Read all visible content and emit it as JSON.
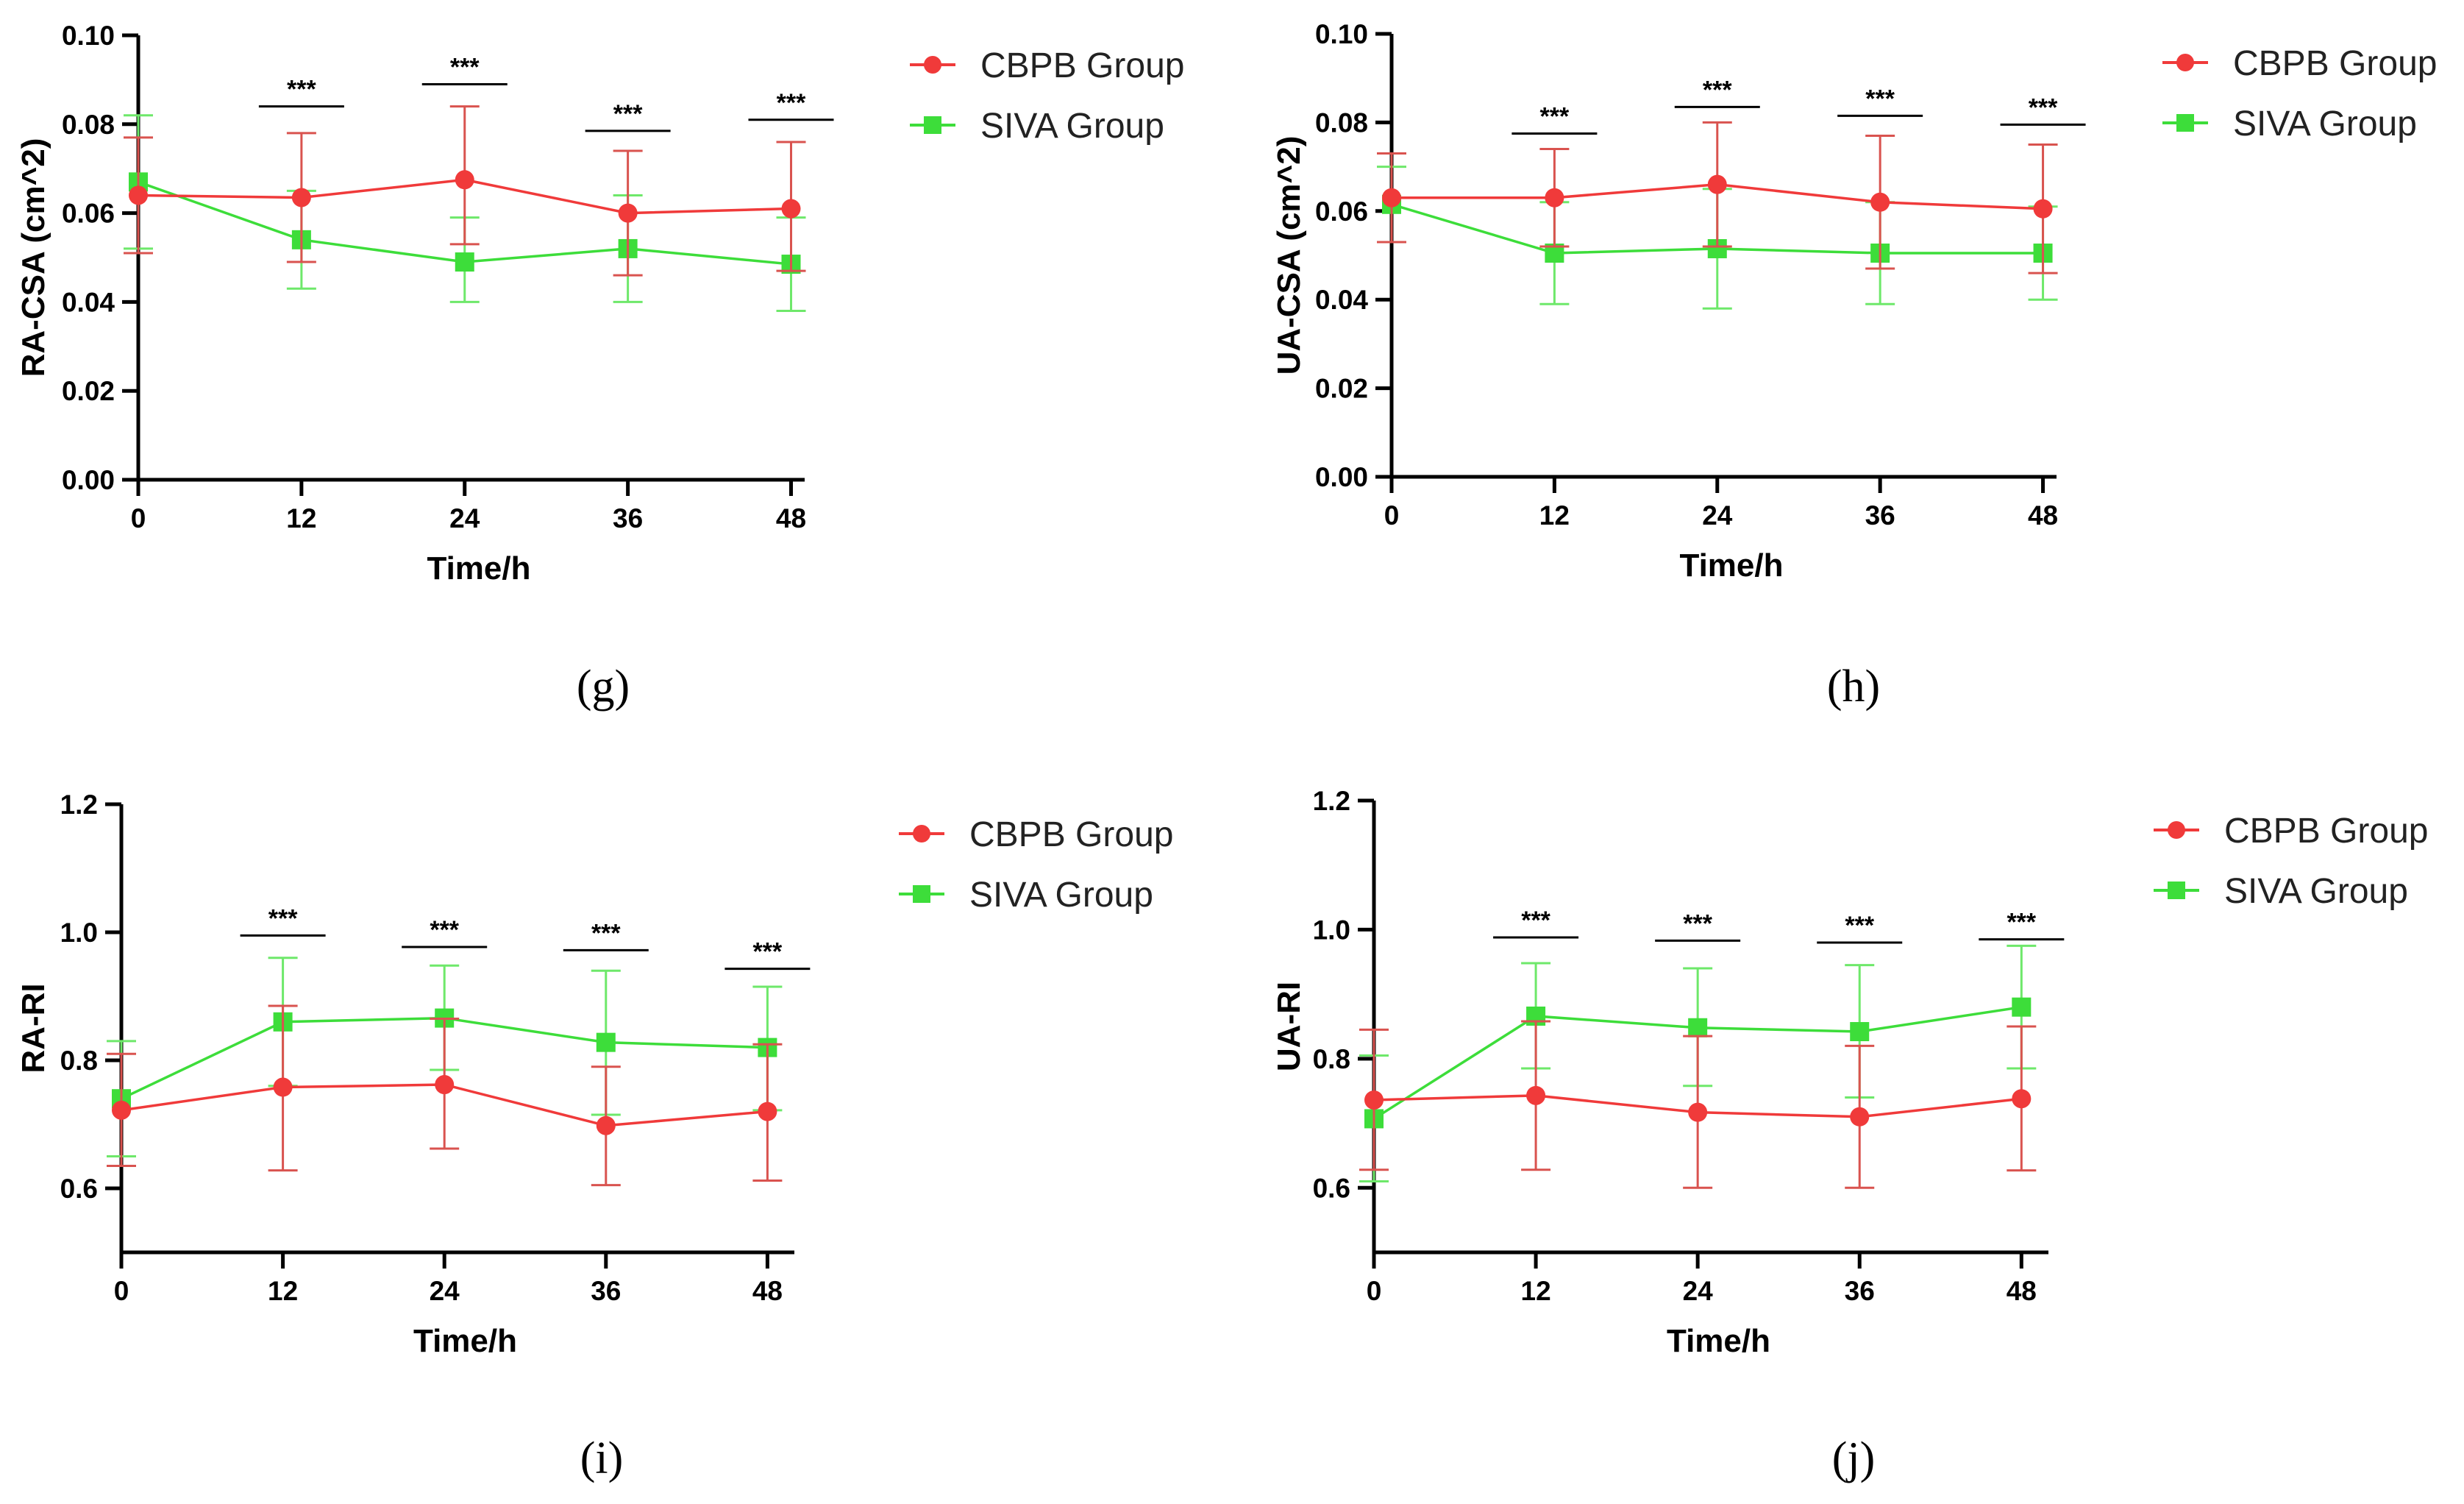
{
  "figure": {
    "panels": [
      "(g)",
      "(h)",
      "(i)",
      "(j)"
    ]
  },
  "colors": {
    "cbpb": "#f03a3a",
    "siva": "#3ddd3a",
    "cbpb_err": "#d9534f",
    "siva_err": "#6ee86a",
    "axis": "#000000"
  },
  "chart_data": [
    {
      "panel": "(g)",
      "type": "line",
      "title": "",
      "xlabel": "Time/h",
      "ylabel": "RA-CSA (cm^2)",
      "x": [
        0,
        12,
        24,
        36,
        48
      ],
      "x_tick_labels": [
        "0",
        "12",
        "24",
        "36",
        "48"
      ],
      "xlim": [
        0,
        49
      ],
      "ylim": [
        0,
        0.1
      ],
      "y_ticks": [
        0,
        0.02,
        0.04,
        0.06,
        0.08,
        0.1
      ],
      "y_tick_labels": [
        "0.00",
        "0.02",
        "0.04",
        "0.06",
        "0.08",
        "0.10"
      ],
      "legend_position": "right",
      "series": [
        {
          "name": "CBPB Group",
          "marker": "circle",
          "values": [
            0.064,
            0.0635,
            0.0675,
            0.06,
            0.061
          ],
          "err_low": [
            0.051,
            0.049,
            0.053,
            0.046,
            0.047
          ],
          "err_high": [
            0.077,
            0.078,
            0.084,
            0.074,
            0.076
          ]
        },
        {
          "name": "SIVA Group",
          "marker": "square",
          "values": [
            0.067,
            0.054,
            0.049,
            0.052,
            0.0485
          ],
          "err_low": [
            0.052,
            0.043,
            0.04,
            0.04,
            0.038
          ],
          "err_high": [
            0.082,
            0.065,
            0.059,
            0.064,
            0.059
          ]
        }
      ],
      "annotations": [
        {
          "text": "***",
          "x": 12,
          "y": 0.084
        },
        {
          "text": "***",
          "x": 24,
          "y": 0.089
        },
        {
          "text": "***",
          "x": 36,
          "y": 0.0785
        },
        {
          "text": "***",
          "x": 48,
          "y": 0.081
        }
      ]
    },
    {
      "panel": "(h)",
      "type": "line",
      "title": "",
      "xlabel": "Time/h",
      "ylabel": "UA-CSA (cm^2)",
      "x": [
        0,
        12,
        24,
        36,
        48
      ],
      "x_tick_labels": [
        "0",
        "12",
        "24",
        "36",
        "48"
      ],
      "xlim": [
        0,
        49
      ],
      "ylim": [
        0,
        0.1
      ],
      "y_ticks": [
        0,
        0.02,
        0.04,
        0.06,
        0.08,
        0.1
      ],
      "y_tick_labels": [
        "0.00",
        "0.02",
        "0.04",
        "0.06",
        "0.08",
        "0.10"
      ],
      "legend_position": "right",
      "series": [
        {
          "name": "CBPB Group",
          "marker": "circle",
          "values": [
            0.063,
            0.063,
            0.066,
            0.062,
            0.0605
          ],
          "err_low": [
            0.053,
            0.052,
            0.052,
            0.047,
            0.046
          ],
          "err_high": [
            0.073,
            0.074,
            0.08,
            0.077,
            0.075
          ]
        },
        {
          "name": "SIVA Group",
          "marker": "square",
          "values": [
            0.0615,
            0.0505,
            0.0515,
            0.0505,
            0.0505
          ],
          "err_low": [
            0.053,
            0.039,
            0.038,
            0.039,
            0.04
          ],
          "err_high": [
            0.07,
            0.062,
            0.065,
            0.062,
            0.061
          ]
        }
      ],
      "annotations": [
        {
          "text": "***",
          "x": 12,
          "y": 0.0775
        },
        {
          "text": "***",
          "x": 24,
          "y": 0.0835
        },
        {
          "text": "***",
          "x": 36,
          "y": 0.0815
        },
        {
          "text": "***",
          "x": 48,
          "y": 0.0795
        }
      ]
    },
    {
      "panel": "(i)",
      "type": "line",
      "title": "",
      "xlabel": "Time/h",
      "ylabel": "RA-RI",
      "x": [
        0,
        12,
        24,
        36,
        48
      ],
      "x_tick_labels": [
        "0",
        "12",
        "24",
        "36",
        "48"
      ],
      "xlim": [
        0,
        50
      ],
      "ylim": [
        0.5,
        1.2
      ],
      "y_ticks": [
        0.6,
        0.8,
        1.0,
        1.2
      ],
      "y_tick_labels": [
        "0.6",
        "0.8",
        "1.0",
        "1.2"
      ],
      "legend_position": "right",
      "series": [
        {
          "name": "CBPB Group",
          "marker": "circle",
          "values": [
            0.722,
            0.758,
            0.762,
            0.698,
            0.72
          ],
          "err_low": [
            0.635,
            0.628,
            0.662,
            0.605,
            0.612
          ],
          "err_high": [
            0.81,
            0.885,
            0.865,
            0.79,
            0.825
          ]
        },
        {
          "name": "SIVA Group",
          "marker": "square",
          "values": [
            0.74,
            0.86,
            0.866,
            0.828,
            0.82
          ],
          "err_low": [
            0.65,
            0.76,
            0.785,
            0.715,
            0.722
          ],
          "err_high": [
            0.83,
            0.96,
            0.948,
            0.94,
            0.915
          ]
        }
      ],
      "annotations": [
        {
          "text": "***",
          "x": 12,
          "y": 0.995
        },
        {
          "text": "***",
          "x": 24,
          "y": 0.977
        },
        {
          "text": "***",
          "x": 36,
          "y": 0.972
        },
        {
          "text": "***",
          "x": 48,
          "y": 0.943
        }
      ]
    },
    {
      "panel": "(j)",
      "type": "line",
      "title": "",
      "xlabel": "Time/h",
      "ylabel": "UA-RI",
      "x": [
        0,
        12,
        24,
        36,
        48
      ],
      "x_tick_labels": [
        "0",
        "12",
        "24",
        "36",
        "48"
      ],
      "xlim": [
        0,
        50
      ],
      "ylim": [
        0.5,
        1.2
      ],
      "y_ticks": [
        0.6,
        0.8,
        1.0,
        1.2
      ],
      "y_tick_labels": [
        "0.6",
        "0.8",
        "1.0",
        "1.2"
      ],
      "legend_position": "right",
      "series": [
        {
          "name": "CBPB Group",
          "marker": "circle",
          "values": [
            0.736,
            0.743,
            0.717,
            0.71,
            0.738
          ],
          "err_low": [
            0.628,
            0.628,
            0.6,
            0.6,
            0.627
          ],
          "err_high": [
            0.845,
            0.858,
            0.835,
            0.82,
            0.85
          ]
        },
        {
          "name": "SIVA Group",
          "marker": "square",
          "values": [
            0.707,
            0.866,
            0.848,
            0.842,
            0.88
          ],
          "err_low": [
            0.61,
            0.785,
            0.758,
            0.74,
            0.785
          ],
          "err_high": [
            0.805,
            0.948,
            0.94,
            0.945,
            0.975
          ]
        }
      ],
      "annotations": [
        {
          "text": "***",
          "x": 12,
          "y": 0.988
        },
        {
          "text": "***",
          "x": 24,
          "y": 0.983
        },
        {
          "text": "***",
          "x": 36,
          "y": 0.98
        },
        {
          "text": "***",
          "x": 48,
          "y": 0.985
        }
      ]
    }
  ]
}
